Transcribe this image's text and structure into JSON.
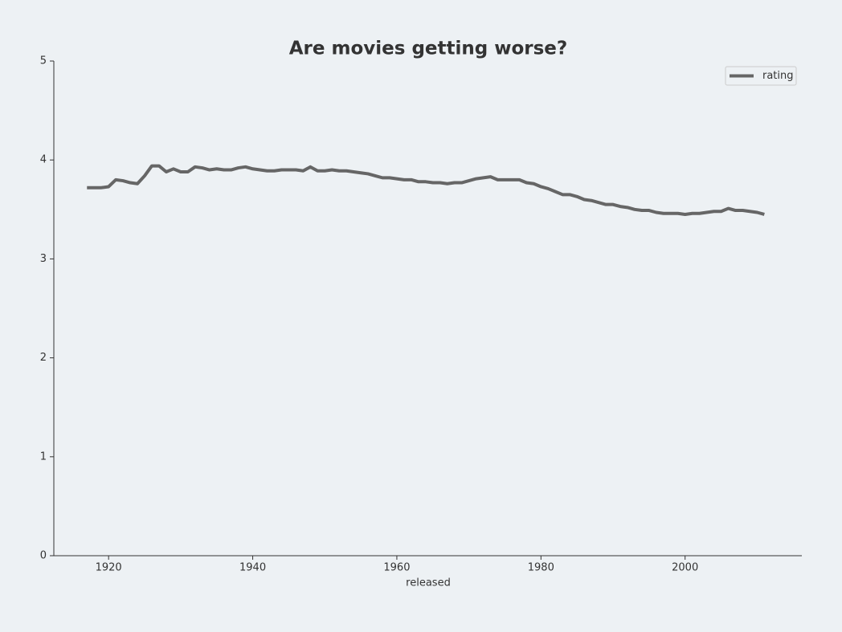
{
  "chart_data": {
    "type": "line",
    "title": "Are movies getting worse?",
    "x_label": "released",
    "x": [
      1917,
      1918,
      1919,
      1920,
      1921,
      1922,
      1923,
      1924,
      1925,
      1926,
      1927,
      1928,
      1929,
      1930,
      1931,
      1932,
      1933,
      1934,
      1935,
      1936,
      1937,
      1938,
      1939,
      1940,
      1941,
      1942,
      1943,
      1944,
      1945,
      1946,
      1947,
      1948,
      1949,
      1950,
      1951,
      1952,
      1953,
      1954,
      1955,
      1956,
      1957,
      1958,
      1959,
      1960,
      1961,
      1962,
      1963,
      1964,
      1965,
      1966,
      1967,
      1968,
      1969,
      1970,
      1971,
      1972,
      1973,
      1974,
      1975,
      1976,
      1977,
      1978,
      1979,
      1980,
      1981,
      1982,
      1983,
      1984,
      1985,
      1986,
      1987,
      1988,
      1989,
      1990,
      1991,
      1992,
      1993,
      1994,
      1995,
      1996,
      1997,
      1998,
      1999,
      2000,
      2001,
      2002,
      2003,
      2004,
      2005,
      2006,
      2007,
      2008,
      2009,
      2010,
      2011
    ],
    "series": [
      {
        "name": "rating",
        "color": "#666666",
        "values": [
          3.72,
          3.72,
          3.72,
          3.73,
          3.8,
          3.79,
          3.77,
          3.76,
          3.84,
          3.94,
          3.94,
          3.88,
          3.91,
          3.88,
          3.88,
          3.93,
          3.92,
          3.9,
          3.91,
          3.9,
          3.9,
          3.92,
          3.93,
          3.91,
          3.9,
          3.89,
          3.89,
          3.9,
          3.9,
          3.9,
          3.89,
          3.93,
          3.89,
          3.89,
          3.9,
          3.89,
          3.89,
          3.88,
          3.87,
          3.86,
          3.84,
          3.82,
          3.82,
          3.81,
          3.8,
          3.8,
          3.78,
          3.78,
          3.77,
          3.77,
          3.76,
          3.77,
          3.77,
          3.79,
          3.81,
          3.82,
          3.83,
          3.8,
          3.8,
          3.8,
          3.8,
          3.77,
          3.76,
          3.73,
          3.71,
          3.68,
          3.65,
          3.65,
          3.63,
          3.6,
          3.59,
          3.57,
          3.55,
          3.55,
          3.53,
          3.52,
          3.5,
          3.49,
          3.49,
          3.47,
          3.46,
          3.46,
          3.46,
          3.45,
          3.46,
          3.46,
          3.47,
          3.48,
          3.48,
          3.51,
          3.49,
          3.49,
          3.48,
          3.47,
          3.45
        ]
      }
    ],
    "xlim": [
      1912.4,
      2016.2
    ],
    "xticks": [
      1920,
      1940,
      1960,
      1980,
      2000
    ],
    "ylim": [
      0,
      5
    ],
    "yticks": [
      0,
      1,
      2,
      3,
      4,
      5
    ],
    "grid": false,
    "legend": "upper right"
  }
}
